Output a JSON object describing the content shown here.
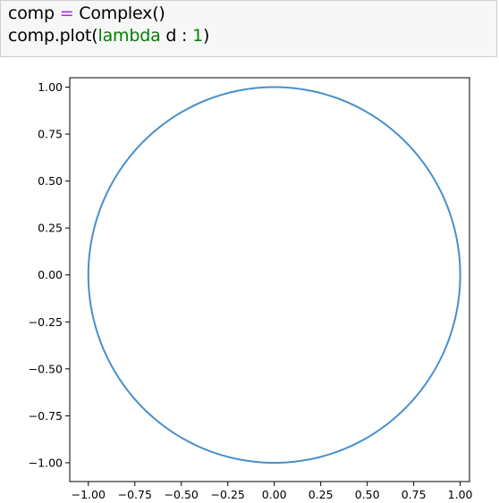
{
  "cell": {
    "line1": {
      "var": "comp",
      "op": "=",
      "call": "Complex()"
    },
    "line2": {
      "prefix": "comp.plot(",
      "keyword": "lambda",
      "param": " d : ",
      "number": "1",
      "suffix": ")"
    }
  },
  "chart_data": {
    "type": "line",
    "title": "",
    "xlabel": "",
    "ylabel": "",
    "xlim": [
      -1.1,
      1.05
    ],
    "ylim": [
      -1.1,
      1.05
    ],
    "xticks": [
      "−1.00",
      "−0.75",
      "−0.50",
      "−0.25",
      "0.00",
      "0.25",
      "0.50",
      "0.75",
      "1.00"
    ],
    "yticks": [
      "1.00",
      "0.75",
      "0.50",
      "0.25",
      "0.00",
      "−0.25",
      "−0.50",
      "−0.75",
      "−1.00"
    ],
    "tick_values": [
      -1.0,
      -0.75,
      -0.5,
      -0.25,
      0.0,
      0.25,
      0.5,
      0.75,
      1.0
    ],
    "series": [
      {
        "shape": "circle",
        "center": [
          0,
          0
        ],
        "radius": 1,
        "color": "#4a8fca"
      }
    ],
    "grid": false,
    "legend": "none"
  }
}
